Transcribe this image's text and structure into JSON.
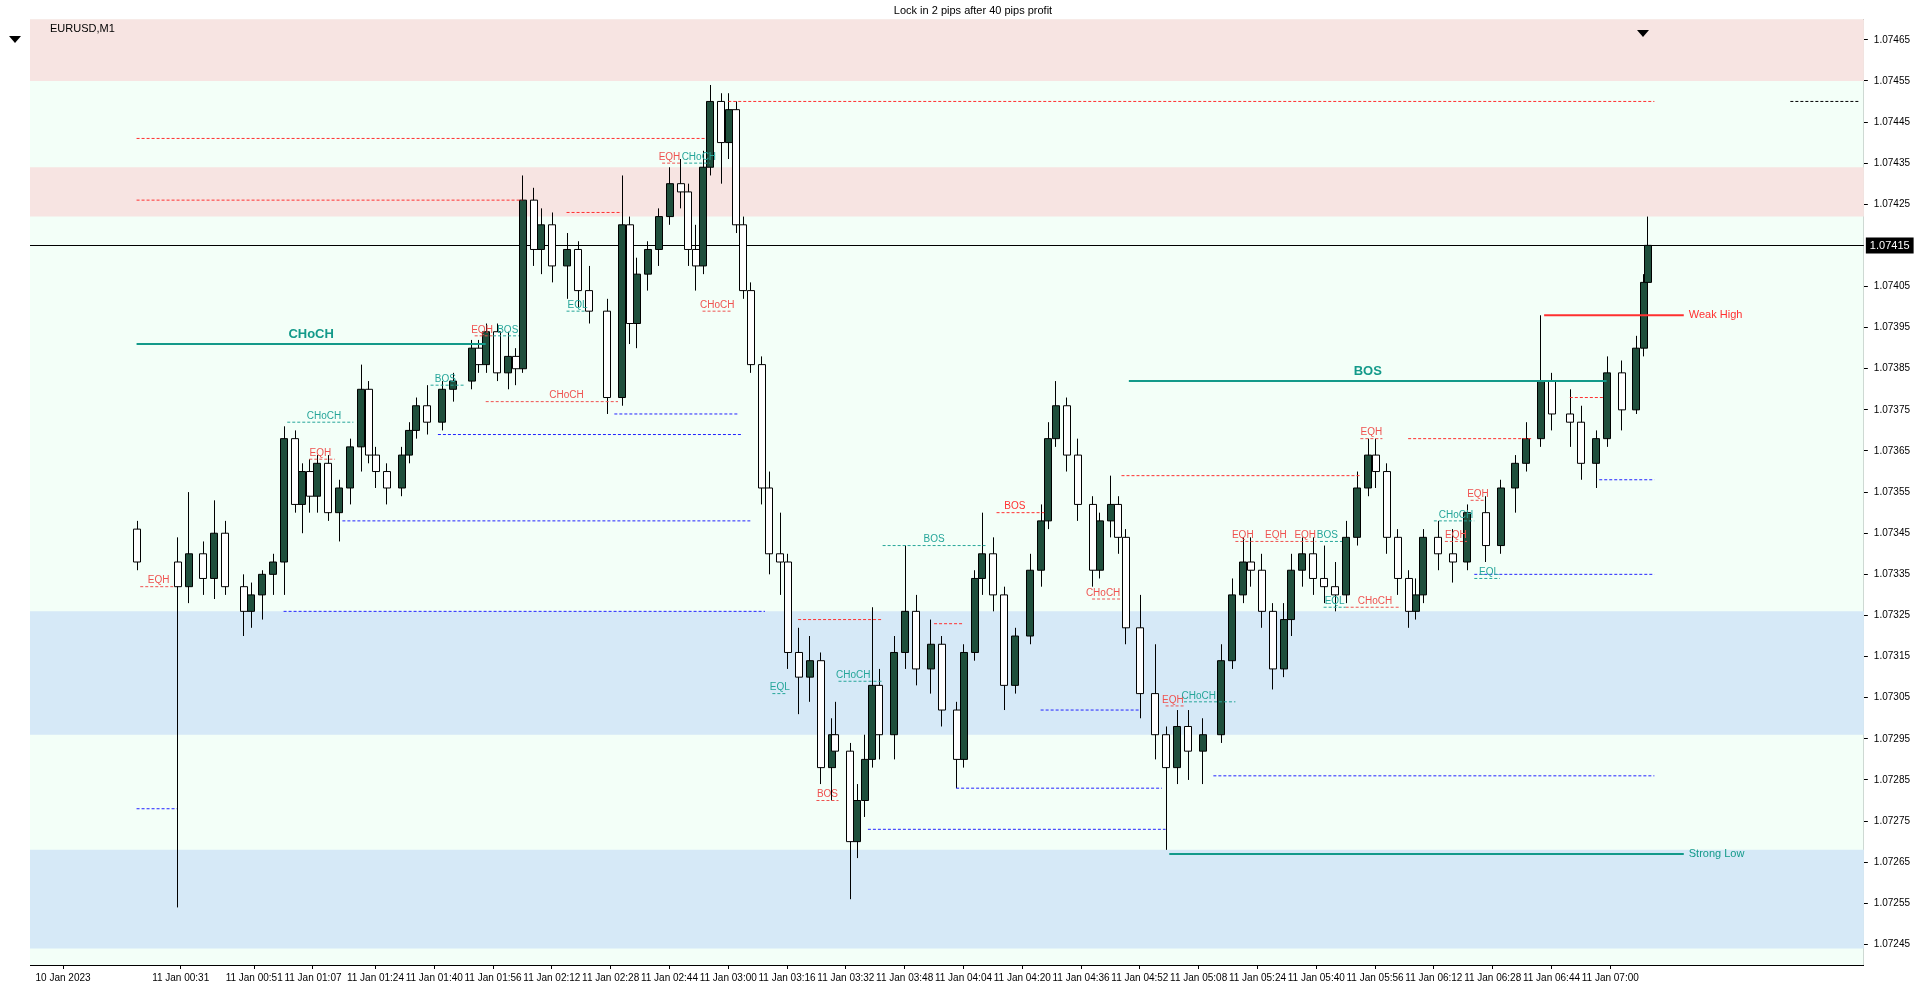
{
  "chart_data": {
    "type": "candlestick",
    "title": "Lock in 2 pips after 40 pips profit",
    "subtitle": "EURUSD,M1",
    "x": [
      "2023-01-11T00:19",
      "2023-01-11T00:30",
      "2023-01-11T00:33",
      "2023-01-11T00:37",
      "2023-01-11T00:40",
      "2023-01-11T00:43",
      "2023-01-11T00:48",
      "2023-01-11T00:50",
      "2023-01-11T00:53",
      "2023-01-11T00:56",
      "2023-01-11T00:59",
      "2023-01-11T01:02",
      "2023-01-11T01:04",
      "2023-01-11T01:06",
      "2023-01-11T01:08",
      "2023-01-11T01:11",
      "2023-01-11T01:14",
      "2023-01-11T01:17",
      "2023-01-11T01:20",
      "2023-01-11T01:22",
      "2023-01-11T01:24",
      "2023-01-11T01:27",
      "2023-01-11T01:31",
      "2023-01-11T01:33",
      "2023-01-11T01:35",
      "2023-01-11T01:38",
      "2023-01-11T01:42",
      "2023-01-11T01:45",
      "2023-01-11T01:50",
      "2023-01-11T01:52",
      "2023-01-11T01:54",
      "2023-01-11T01:57",
      "2023-01-11T02:00",
      "2023-01-11T02:02",
      "2023-01-11T02:04",
      "2023-01-11T02:07",
      "2023-01-11T02:09",
      "2023-01-11T02:12",
      "2023-01-11T02:16",
      "2023-01-11T02:19",
      "2023-01-11T02:22",
      "2023-01-11T02:27",
      "2023-01-11T02:31",
      "2023-01-11T02:33",
      "2023-01-11T02:35",
      "2023-01-11T02:38",
      "2023-01-11T02:41",
      "2023-01-11T02:44",
      "2023-01-11T02:47",
      "2023-01-11T02:49",
      "2023-01-11T02:51",
      "2023-01-11T02:53",
      "2023-01-11T02:55",
      "2023-01-11T02:58",
      "2023-01-11T03:00",
      "2023-01-11T03:02",
      "2023-01-11T03:04",
      "2023-01-11T03:06",
      "2023-01-11T03:09",
      "2023-01-11T03:11",
      "2023-01-11T03:14",
      "2023-01-11T03:16",
      "2023-01-11T03:19",
      "2023-01-11T03:22",
      "2023-01-11T03:25",
      "2023-01-11T03:28",
      "2023-01-11T03:29",
      "2023-01-11T03:33",
      "2023-01-11T03:35",
      "2023-01-11T03:37",
      "2023-01-11T03:39",
      "2023-01-11T03:41",
      "2023-01-11T03:45",
      "2023-01-11T03:48",
      "2023-01-11T03:51",
      "2023-01-11T03:55",
      "2023-01-11T03:58",
      "2023-01-11T04:02",
      "2023-01-11T04:04",
      "2023-01-11T04:07",
      "2023-01-11T04:09",
      "2023-01-11T04:12",
      "2023-01-11T04:15",
      "2023-01-11T04:18",
      "2023-01-11T04:22",
      "2023-01-11T04:25",
      "2023-01-11T04:27",
      "2023-01-11T04:29",
      "2023-01-11T04:32",
      "2023-01-11T04:35",
      "2023-01-11T04:39",
      "2023-01-11T04:41",
      "2023-01-11T04:44",
      "2023-01-11T04:46",
      "2023-01-11T04:48",
      "2023-01-11T04:52",
      "2023-01-11T04:56",
      "2023-01-11T04:59",
      "2023-01-11T05:02",
      "2023-01-11T05:05",
      "2023-01-11T05:09",
      "2023-01-11T05:14",
      "2023-01-11T05:17",
      "2023-01-11T05:20",
      "2023-01-11T05:22",
      "2023-01-11T05:25",
      "2023-01-11T05:28",
      "2023-01-11T05:31",
      "2023-01-11T05:33",
      "2023-01-11T05:36",
      "2023-01-11T05:39",
      "2023-01-11T05:42",
      "2023-01-11T05:45",
      "2023-01-11T05:48",
      "2023-01-11T05:51",
      "2023-01-11T05:54",
      "2023-01-11T05:56",
      "2023-01-11T05:59",
      "2023-01-11T06:02",
      "2023-01-11T06:05",
      "2023-01-11T06:07",
      "2023-01-11T06:09",
      "2023-01-11T06:13",
      "2023-01-11T06:17",
      "2023-01-11T06:21",
      "2023-01-11T06:26",
      "2023-01-11T06:30",
      "2023-01-11T06:34",
      "2023-01-11T06:37",
      "2023-01-11T06:41",
      "2023-01-11T06:44",
      "2023-01-11T06:49",
      "2023-01-11T06:52",
      "2023-01-11T06:56",
      "2023-01-11T06:59",
      "2023-01-11T07:03",
      "2023-01-11T07:07",
      "2023-01-11T07:09",
      "2023-01-11T07:10"
    ],
    "ohlc": [
      [
        1.07346,
        1.07348,
        1.07336,
        1.07338
      ],
      [
        1.07338,
        1.07344,
        1.07254,
        1.07332
      ],
      [
        1.07332,
        1.07355,
        1.07328,
        1.0734
      ],
      [
        1.0734,
        1.07343,
        1.0733,
        1.07334
      ],
      [
        1.07334,
        1.07353,
        1.07329,
        1.07345
      ],
      [
        1.07345,
        1.07348,
        1.0733,
        1.07332
      ],
      [
        1.07332,
        1.07335,
        1.0732,
        1.07326
      ],
      [
        1.07326,
        1.07333,
        1.07322,
        1.0733
      ],
      [
        1.0733,
        1.07336,
        1.07324,
        1.07335
      ],
      [
        1.07335,
        1.0734,
        1.0733,
        1.07338
      ],
      [
        1.07338,
        1.07371,
        1.0733,
        1.07368
      ],
      [
        1.07368,
        1.0737,
        1.0735,
        1.07352
      ],
      [
        1.07352,
        1.07362,
        1.07345,
        1.0736
      ],
      [
        1.0736,
        1.07363,
        1.0735,
        1.07354
      ],
      [
        1.07354,
        1.07364,
        1.0735,
        1.07362
      ],
      [
        1.07362,
        1.07364,
        1.07348,
        1.0735
      ],
      [
        1.0735,
        1.07358,
        1.07343,
        1.07356
      ],
      [
        1.07356,
        1.07368,
        1.07352,
        1.07366
      ],
      [
        1.07366,
        1.07386,
        1.0736,
        1.0738
      ],
      [
        1.0738,
        1.07382,
        1.07362,
        1.07364
      ],
      [
        1.07364,
        1.07366,
        1.07356,
        1.0736
      ],
      [
        1.0736,
        1.07362,
        1.07352,
        1.07356
      ],
      [
        1.07356,
        1.07366,
        1.07354,
        1.07364
      ],
      [
        1.07364,
        1.07372,
        1.07362,
        1.0737
      ],
      [
        1.0737,
        1.07378,
        1.07368,
        1.07376
      ],
      [
        1.07376,
        1.07381,
        1.07369,
        1.07372
      ],
      [
        1.07372,
        1.07382,
        1.0737,
        1.0738
      ],
      [
        1.0738,
        1.07384,
        1.07377,
        1.07382
      ],
      [
        1.07382,
        1.07392,
        1.0738,
        1.0739
      ],
      [
        1.0739,
        1.07392,
        1.07384,
        1.07386
      ],
      [
        1.07386,
        1.07396,
        1.07384,
        1.07394
      ],
      [
        1.07394,
        1.07396,
        1.07382,
        1.07384
      ],
      [
        1.07384,
        1.07394,
        1.0738,
        1.07388
      ],
      [
        1.07388,
        1.0739,
        1.07381,
        1.07385
      ],
      [
        1.07385,
        1.07432,
        1.07384,
        1.07426
      ],
      [
        1.07426,
        1.07429,
        1.0741,
        1.07414
      ],
      [
        1.07414,
        1.07424,
        1.07408,
        1.0742
      ],
      [
        1.0742,
        1.07423,
        1.07406,
        1.0741
      ],
      [
        1.0741,
        1.07418,
        1.07402,
        1.07414
      ],
      [
        1.07414,
        1.07416,
        1.074,
        1.07404
      ],
      [
        1.07404,
        1.0741,
        1.07396,
        1.07399
      ],
      [
        1.07399,
        1.07402,
        1.07374,
        1.07378
      ],
      [
        1.07378,
        1.07432,
        1.07376,
        1.0742
      ],
      [
        1.0742,
        1.07422,
        1.07391,
        1.07396
      ],
      [
        1.07396,
        1.07412,
        1.0739,
        1.07408
      ],
      [
        1.07408,
        1.07416,
        1.07404,
        1.07414
      ],
      [
        1.07414,
        1.07424,
        1.0741,
        1.07422
      ],
      [
        1.07422,
        1.07434,
        1.0742,
        1.0743
      ],
      [
        1.0743,
        1.07436,
        1.07424,
        1.07428
      ],
      [
        1.07428,
        1.0743,
        1.0741,
        1.07414
      ],
      [
        1.07414,
        1.0742,
        1.07404,
        1.0741
      ],
      [
        1.0741,
        1.07438,
        1.07408,
        1.07434
      ],
      [
        1.07434,
        1.07454,
        1.07432,
        1.0745
      ],
      [
        1.0745,
        1.07452,
        1.0743,
        1.0744
      ],
      [
        1.0744,
        1.07452,
        1.07436,
        1.07448
      ],
      [
        1.07448,
        1.0745,
        1.07418,
        1.0742
      ],
      [
        1.0742,
        1.07422,
        1.07402,
        1.07404
      ],
      [
        1.07404,
        1.07406,
        1.07384,
        1.07386
      ],
      [
        1.07386,
        1.07388,
        1.07352,
        1.07356
      ],
      [
        1.07356,
        1.0736,
        1.07335,
        1.0734
      ],
      [
        1.0734,
        1.0735,
        1.0733,
        1.07338
      ],
      [
        1.07338,
        1.0734,
        1.07312,
        1.07316
      ],
      [
        1.07316,
        1.07322,
        1.07301,
        1.0731
      ],
      [
        1.0731,
        1.0732,
        1.07304,
        1.07314
      ],
      [
        1.07314,
        1.07316,
        1.07284,
        1.07288
      ],
      [
        1.07288,
        1.073,
        1.0728,
        1.07296
      ],
      [
        1.07296,
        1.07304,
        1.07288,
        1.07292
      ],
      [
        1.07292,
        1.07294,
        1.07256,
        1.0727
      ],
      [
        1.0727,
        1.07284,
        1.07266,
        1.0728
      ],
      [
        1.0728,
        1.07296,
        1.07276,
        1.0729
      ],
      [
        1.0729,
        1.07327,
        1.07288,
        1.07308
      ],
      [
        1.07308,
        1.07312,
        1.0729,
        1.07296
      ],
      [
        1.07296,
        1.0732,
        1.0729,
        1.07316
      ],
      [
        1.07316,
        1.07342,
        1.07312,
        1.07326
      ],
      [
        1.07326,
        1.0733,
        1.07308,
        1.07312
      ],
      [
        1.07312,
        1.07324,
        1.07306,
        1.07318
      ],
      [
        1.07318,
        1.0732,
        1.07298,
        1.07302
      ],
      [
        1.07302,
        1.07304,
        1.07283,
        1.0729
      ],
      [
        1.0729,
        1.07318,
        1.07288,
        1.07316
      ],
      [
        1.07316,
        1.07336,
        1.07314,
        1.07334
      ],
      [
        1.07334,
        1.0735,
        1.0733,
        1.0734
      ],
      [
        1.0734,
        1.07344,
        1.07326,
        1.0733
      ],
      [
        1.0733,
        1.07332,
        1.07302,
        1.07308
      ],
      [
        1.07308,
        1.07322,
        1.07306,
        1.0732
      ],
      [
        1.0732,
        1.0734,
        1.07318,
        1.07336
      ],
      [
        1.07336,
        1.07352,
        1.07332,
        1.07348
      ],
      [
        1.07348,
        1.07372,
        1.07346,
        1.07368
      ],
      [
        1.07368,
        1.07382,
        1.07366,
        1.07376
      ],
      [
        1.07376,
        1.07378,
        1.0736,
        1.07364
      ],
      [
        1.07364,
        1.07368,
        1.07348,
        1.07352
      ],
      [
        1.07352,
        1.07354,
        1.07332,
        1.07336
      ],
      [
        1.07336,
        1.0735,
        1.07334,
        1.07348
      ],
      [
        1.07348,
        1.07359,
        1.07344,
        1.07352
      ],
      [
        1.07352,
        1.07354,
        1.0734,
        1.07344
      ],
      [
        1.07344,
        1.07346,
        1.07318,
        1.07322
      ],
      [
        1.07322,
        1.0733,
        1.073,
        1.07306
      ],
      [
        1.07306,
        1.07318,
        1.0729,
        1.07296
      ],
      [
        1.07296,
        1.07298,
        1.07268,
        1.07288
      ],
      [
        1.07288,
        1.07302,
        1.07284,
        1.07298
      ],
      [
        1.07298,
        1.07302,
        1.07285,
        1.07292
      ],
      [
        1.07292,
        1.073,
        1.07284,
        1.07296
      ],
      [
        1.07296,
        1.07318,
        1.07294,
        1.07314
      ],
      [
        1.07314,
        1.07334,
        1.07312,
        1.0733
      ],
      [
        1.0733,
        1.07344,
        1.07328,
        1.07338
      ],
      [
        1.07338,
        1.07344,
        1.07332,
        1.07336
      ],
      [
        1.07336,
        1.0734,
        1.07322,
        1.07326
      ],
      [
        1.07326,
        1.07328,
        1.07307,
        1.07312
      ],
      [
        1.07312,
        1.07328,
        1.0731,
        1.07324
      ],
      [
        1.07324,
        1.0734,
        1.0732,
        1.07336
      ],
      [
        1.07336,
        1.07344,
        1.07332,
        1.0734
      ],
      [
        1.0734,
        1.07344,
        1.0733,
        1.07334
      ],
      [
        1.07334,
        1.07342,
        1.07328,
        1.07332
      ],
      [
        1.07332,
        1.07338,
        1.07326,
        1.0733
      ],
      [
        1.0733,
        1.07348,
        1.07328,
        1.07344
      ],
      [
        1.07344,
        1.0736,
        1.07342,
        1.07356
      ],
      [
        1.07356,
        1.07368,
        1.07354,
        1.07364
      ],
      [
        1.07364,
        1.07368,
        1.07356,
        1.0736
      ],
      [
        1.0736,
        1.07362,
        1.0734,
        1.07344
      ],
      [
        1.07344,
        1.07346,
        1.0733,
        1.07334
      ],
      [
        1.07334,
        1.07336,
        1.07322,
        1.07326
      ],
      [
        1.07326,
        1.07334,
        1.07324,
        1.0733
      ],
      [
        1.0733,
        1.07346,
        1.07328,
        1.07344
      ],
      [
        1.07344,
        1.07348,
        1.07336,
        1.0734
      ],
      [
        1.0734,
        1.07346,
        1.07333,
        1.07338
      ],
      [
        1.07338,
        1.07352,
        1.07336,
        1.0735
      ],
      [
        1.0735,
        1.07354,
        1.07338,
        1.07342
      ],
      [
        1.07342,
        1.07358,
        1.0734,
        1.07356
      ],
      [
        1.07356,
        1.07364,
        1.0735,
        1.07362
      ],
      [
        1.07362,
        1.07372,
        1.0736,
        1.07368
      ],
      [
        1.07368,
        1.07398,
        1.07366,
        1.07382
      ],
      [
        1.07382,
        1.07384,
        1.0737,
        1.07374
      ],
      [
        1.07374,
        1.0738,
        1.07366,
        1.07372
      ],
      [
        1.07372,
        1.07376,
        1.07358,
        1.07362
      ],
      [
        1.07362,
        1.0737,
        1.07356,
        1.07368
      ],
      [
        1.07368,
        1.07388,
        1.07366,
        1.07384
      ],
      [
        1.07384,
        1.07387,
        1.0737,
        1.07375
      ],
      [
        1.07375,
        1.07393,
        1.07374,
        1.0739
      ],
      [
        1.0739,
        1.07408,
        1.07388,
        1.07406
      ],
      [
        1.07406,
        1.07422,
        1.07404,
        1.07415
      ]
    ],
    "xlim": [
      "2023-01-10T23:50",
      "2023-01-11T08:09"
    ],
    "xticks": [
      {
        "value": "2023-01-10T23:59",
        "label": "10 Jan 2023"
      },
      {
        "value": "2023-01-11T00:31",
        "label": "11 Jan 00:31"
      },
      {
        "value": "2023-01-11T00:51",
        "label": "11 Jan 00:51"
      },
      {
        "value": "2023-01-11T01:07",
        "label": "11 Jan 01:07"
      },
      {
        "value": "2023-01-11T01:24",
        "label": "11 Jan 01:24"
      },
      {
        "value": "2023-01-11T01:40",
        "label": "11 Jan 01:40"
      },
      {
        "value": "2023-01-11T01:56",
        "label": "11 Jan 01:56"
      },
      {
        "value": "2023-01-11T02:12",
        "label": "11 Jan 02:12"
      },
      {
        "value": "2023-01-11T02:28",
        "label": "11 Jan 02:28"
      },
      {
        "value": "2023-01-11T02:44",
        "label": "11 Jan 02:44"
      },
      {
        "value": "2023-01-11T03:00",
        "label": "11 Jan 03:00"
      },
      {
        "value": "2023-01-11T03:16",
        "label": "11 Jan 03:16"
      },
      {
        "value": "2023-01-11T03:32",
        "label": "11 Jan 03:32"
      },
      {
        "value": "2023-01-11T03:48",
        "label": "11 Jan 03:48"
      },
      {
        "value": "2023-01-11T04:04",
        "label": "11 Jan 04:04"
      },
      {
        "value": "2023-01-11T04:20",
        "label": "11 Jan 04:20"
      },
      {
        "value": "2023-01-11T04:36",
        "label": "11 Jan 04:36"
      },
      {
        "value": "2023-01-11T04:52",
        "label": "11 Jan 04:52"
      },
      {
        "value": "2023-01-11T05:08",
        "label": "11 Jan 05:08"
      },
      {
        "value": "2023-01-11T05:24",
        "label": "11 Jan 05:24"
      },
      {
        "value": "2023-01-11T05:40",
        "label": "11 Jan 05:40"
      },
      {
        "value": "2023-01-11T05:56",
        "label": "11 Jan 05:56"
      },
      {
        "value": "2023-01-11T06:12",
        "label": "11 Jan 06:12"
      },
      {
        "value": "2023-01-11T06:28",
        "label": "11 Jan 06:28"
      },
      {
        "value": "2023-01-11T06:44",
        "label": "11 Jan 06:44"
      },
      {
        "value": "2023-01-11T07:00",
        "label": "11 Jan 07:00"
      }
    ],
    "ylim": [
      1.0724,
      1.0747
    ],
    "yticks": [
      1.07245,
      1.07255,
      1.07265,
      1.07275,
      1.07285,
      1.07295,
      1.07305,
      1.07315,
      1.07325,
      1.07335,
      1.07345,
      1.07355,
      1.07365,
      1.07375,
      1.07385,
      1.07395,
      1.07405,
      1.07425,
      1.07435,
      1.07445,
      1.07455,
      1.07465
    ],
    "grid": false,
    "legend": false,
    "bands": [
      {
        "axis": "y",
        "from": 1.07455,
        "to": 1.0747,
        "color": "#f7e4e2"
      },
      {
        "axis": "y",
        "from": 1.07422,
        "to": 1.07434,
        "color": "#f7e4e2"
      },
      {
        "axis": "y",
        "from": 1.07296,
        "to": 1.07326,
        "color": "#d6e9f7"
      },
      {
        "axis": "y",
        "from": 1.07244,
        "to": 1.07268,
        "color": "#d6e9f7"
      }
    ],
    "ref_lines": [
      {
        "axis": "y",
        "value": 1.07415,
        "label": "1.07415",
        "color": "#000000",
        "line_style": "solid"
      }
    ],
    "series": [
      {
        "type": "line",
        "name": "CHoCH",
        "color": "#139a8a",
        "line_style": "solid",
        "x": [
          "2023-01-11T00:19",
          "2023-01-11T01:54"
        ],
        "values": [
          1.07391,
          1.07391
        ]
      },
      {
        "type": "line",
        "name": "BOS",
        "color": "#139a8a",
        "line_style": "solid",
        "x": [
          "2023-01-11T04:49",
          "2023-01-11T06:59"
        ],
        "values": [
          1.07382,
          1.07382
        ]
      },
      {
        "type": "line",
        "name": "Weak High",
        "color": "#ff3030",
        "line_style": "solid",
        "x": [
          "2023-01-11T06:42",
          "2023-01-11T07:20"
        ],
        "values": [
          1.07398,
          1.07398
        ]
      },
      {
        "type": "line",
        "name": "Strong Low",
        "color": "#139a8a",
        "line_style": "solid",
        "x": [
          "2023-01-11T05:00",
          "2023-01-11T07:20"
        ],
        "values": [
          1.07267,
          1.07267
        ]
      },
      {
        "type": "line",
        "color": "#ff3030",
        "line_style": "dashed",
        "x": [
          "2023-01-11T03:00",
          "2023-01-11T07:12"
        ],
        "values": [
          1.0745,
          1.0745
        ]
      },
      {
        "type": "line",
        "color": "#ff3030",
        "line_style": "dashed",
        "x": [
          "2023-01-11T00:19",
          "2023-01-11T02:54"
        ],
        "values": [
          1.07441,
          1.07441
        ]
      },
      {
        "type": "line",
        "color": "#ff3030",
        "line_style": "dashed",
        "x": [
          "2023-01-11T00:19",
          "2023-01-11T02:04"
        ],
        "values": [
          1.07426,
          1.07426
        ]
      },
      {
        "type": "line",
        "color": "#ff3030",
        "line_style": "dashed",
        "x": [
          "2023-01-11T02:16",
          "2023-01-11T02:31"
        ],
        "values": [
          1.07423,
          1.07423
        ]
      },
      {
        "type": "line",
        "color": "#ff3030",
        "line_style": "dashed",
        "x": [
          "2023-01-11T04:47",
          "2023-01-11T05:52"
        ],
        "values": [
          1.07359,
          1.07359
        ]
      },
      {
        "type": "line",
        "color": "#ff3030",
        "line_style": "dashed",
        "x": [
          "2023-01-11T06:05",
          "2023-01-11T06:39"
        ],
        "values": [
          1.07368,
          1.07368
        ]
      },
      {
        "type": "line",
        "color": "#ff3030",
        "line_style": "dashed",
        "x": [
          "2023-01-11T06:49",
          "2023-01-11T06:58"
        ],
        "values": [
          1.07378,
          1.07378
        ]
      },
      {
        "type": "line",
        "color": "#ff3030",
        "line_style": "dashed",
        "x": [
          "2023-01-11T04:13",
          "2023-01-11T04:26"
        ],
        "values": [
          1.0735,
          1.0735
        ]
      },
      {
        "type": "line",
        "color": "#ff3030",
        "line_style": "dashed",
        "x": [
          "2023-01-11T03:19",
          "2023-01-11T03:42"
        ],
        "values": [
          1.07324,
          1.07324
        ]
      },
      {
        "type": "line",
        "color": "#ff3030",
        "line_style": "dashed",
        "x": [
          "2023-01-11T03:56",
          "2023-01-11T04:04"
        ],
        "values": [
          1.07323,
          1.07323
        ]
      },
      {
        "type": "line",
        "color": "#000000",
        "line_style": "dashed",
        "x": [
          "2023-01-11T07:49",
          "2023-01-11T08:08"
        ],
        "values": [
          1.0745,
          1.0745
        ]
      },
      {
        "type": "line",
        "color": "#2323ff",
        "line_style": "dashed",
        "x": [
          "2023-01-11T00:59",
          "2023-01-11T03:10"
        ],
        "values": [
          1.07326,
          1.07326
        ]
      },
      {
        "type": "line",
        "color": "#2323ff",
        "line_style": "dashed",
        "x": [
          "2023-01-11T01:15",
          "2023-01-11T03:06"
        ],
        "values": [
          1.07348,
          1.07348
        ]
      },
      {
        "type": "line",
        "color": "#2323ff",
        "line_style": "dashed",
        "x": [
          "2023-01-11T01:41",
          "2023-01-11T03:04"
        ],
        "values": [
          1.07369,
          1.07369
        ]
      },
      {
        "type": "line",
        "color": "#2323ff",
        "line_style": "dashed",
        "x": [
          "2023-01-11T02:29",
          "2023-01-11T03:03"
        ],
        "values": [
          1.07374,
          1.07374
        ]
      },
      {
        "type": "line",
        "color": "#2323ff",
        "line_style": "dashed",
        "x": [
          "2023-01-11T00:19",
          "2023-01-11T00:30"
        ],
        "values": [
          1.07278,
          1.07278
        ]
      },
      {
        "type": "line",
        "color": "#2323ff",
        "line_style": "dashed",
        "x": [
          "2023-01-11T03:38",
          "2023-01-11T04:59"
        ],
        "values": [
          1.07273,
          1.07273
        ]
      },
      {
        "type": "line",
        "color": "#2323ff",
        "line_style": "dashed",
        "x": [
          "2023-01-11T04:02",
          "2023-01-11T04:58"
        ],
        "values": [
          1.07283,
          1.07283
        ]
      },
      {
        "type": "line",
        "color": "#2323ff",
        "line_style": "dashed",
        "x": [
          "2023-01-11T04:25",
          "2023-01-11T04:52"
        ],
        "values": [
          1.07302,
          1.07302
        ]
      },
      {
        "type": "line",
        "color": "#2323ff",
        "line_style": "dashed",
        "x": [
          "2023-01-11T05:12",
          "2023-01-11T07:12"
        ],
        "values": [
          1.07286,
          1.07286
        ]
      },
      {
        "type": "line",
        "color": "#2323ff",
        "line_style": "dashed",
        "x": [
          "2023-01-11T06:23",
          "2023-01-11T07:12"
        ],
        "values": [
          1.07335,
          1.07335
        ]
      },
      {
        "type": "line",
        "color": "#2323ff",
        "line_style": "dashed",
        "x": [
          "2023-01-11T06:57",
          "2023-01-11T07:12"
        ],
        "values": [
          1.07358,
          1.07358
        ]
      },
      {
        "type": "line",
        "color": "#ef5350",
        "line_style": "dashed",
        "x": [
          "2023-01-11T00:20",
          "2023-01-11T00:29"
        ],
        "values": [
          1.07332,
          1.07332
        ]
      },
      {
        "type": "line",
        "color": "#26a69a",
        "line_style": "dashed",
        "x": [
          "2023-01-11T01:00",
          "2023-01-11T01:18"
        ],
        "values": [
          1.07372,
          1.07372
        ]
      },
      {
        "type": "line",
        "color": "#ef5350",
        "line_style": "dashed",
        "x": [
          "2023-01-11T01:06",
          "2023-01-11T01:13"
        ],
        "values": [
          1.07363,
          1.07363
        ]
      },
      {
        "type": "line",
        "color": "#26a69a",
        "line_style": "dashed",
        "x": [
          "2023-01-11T01:39",
          "2023-01-11T01:48"
        ],
        "values": [
          1.07381,
          1.07381
        ]
      },
      {
        "type": "line",
        "color": "#ef5350",
        "line_style": "dashed",
        "x": [
          "2023-01-11T01:51",
          "2023-01-11T01:56"
        ],
        "values": [
          1.07393,
          1.07393
        ]
      },
      {
        "type": "line",
        "color": "#26a69a",
        "line_style": "dashed",
        "x": [
          "2023-01-11T01:56",
          "2023-01-11T02:03"
        ],
        "values": [
          1.07393,
          1.07393
        ]
      },
      {
        "type": "line",
        "color": "#ef5350",
        "line_style": "dashed",
        "x": [
          "2023-01-11T01:54",
          "2023-01-11T02:30"
        ],
        "values": [
          1.07377,
          1.07377
        ]
      },
      {
        "type": "line",
        "color": "#26a69a",
        "line_style": "dashed",
        "x": [
          "2023-01-11T02:16",
          "2023-01-11T02:21"
        ],
        "values": [
          1.07399,
          1.07399
        ]
      },
      {
        "type": "line",
        "color": "#ef5350",
        "line_style": "dashed",
        "x": [
          "2023-01-11T02:42",
          "2023-01-11T02:47"
        ],
        "values": [
          1.07435,
          1.07435
        ]
      },
      {
        "type": "line",
        "color": "#26a69a",
        "line_style": "dashed",
        "x": [
          "2023-01-11T02:48",
          "2023-01-11T02:55"
        ],
        "values": [
          1.07435,
          1.07435
        ]
      },
      {
        "type": "line",
        "color": "#ef5350",
        "line_style": "dashed",
        "x": [
          "2023-01-11T02:53",
          "2023-01-11T03:01"
        ],
        "values": [
          1.07399,
          1.07399
        ]
      },
      {
        "type": "line",
        "color": "#26a69a",
        "line_style": "dashed",
        "x": [
          "2023-01-11T03:12",
          "2023-01-11T03:16"
        ],
        "values": [
          1.07306,
          1.07306
        ]
      },
      {
        "type": "line",
        "color": "#26a69a",
        "line_style": "dashed",
        "x": [
          "2023-01-11T03:30",
          "2023-01-11T03:42"
        ],
        "values": [
          1.07309,
          1.07309
        ]
      },
      {
        "type": "line",
        "color": "#ef5350",
        "line_style": "dashed",
        "x": [
          "2023-01-11T03:24",
          "2023-01-11T03:30"
        ],
        "values": [
          1.0728,
          1.0728
        ]
      },
      {
        "type": "line",
        "color": "#26a69a",
        "line_style": "dashed",
        "x": [
          "2023-01-11T03:42",
          "2023-01-11T04:10"
        ],
        "values": [
          1.07342,
          1.07342
        ]
      },
      {
        "type": "line",
        "color": "#ef5350",
        "line_style": "dashed",
        "x": [
          "2023-01-11T04:39",
          "2023-01-11T04:47"
        ],
        "values": [
          1.07329,
          1.07329
        ]
      },
      {
        "type": "line",
        "color": "#ef5350",
        "line_style": "dashed",
        "x": [
          "2023-01-11T04:59",
          "2023-01-11T05:04"
        ],
        "values": [
          1.07303,
          1.07303
        ]
      },
      {
        "type": "line",
        "color": "#26a69a",
        "line_style": "dashed",
        "x": [
          "2023-01-11T05:04",
          "2023-01-11T05:18"
        ],
        "values": [
          1.07304,
          1.07304
        ]
      },
      {
        "type": "line",
        "color": "#ef5350",
        "line_style": "dashed",
        "x": [
          "2023-01-11T05:18",
          "2023-01-11T05:40"
        ],
        "values": [
          1.07343,
          1.07343
        ]
      },
      {
        "type": "line",
        "color": "#26a69a",
        "line_style": "dashed",
        "x": [
          "2023-01-11T05:41",
          "2023-01-11T05:47"
        ],
        "values": [
          1.07343,
          1.07343
        ]
      },
      {
        "type": "line",
        "color": "#26a69a",
        "line_style": "dashed",
        "x": [
          "2023-01-11T05:42",
          "2023-01-11T05:48"
        ],
        "values": [
          1.07327,
          1.07327
        ]
      },
      {
        "type": "line",
        "color": "#ef5350",
        "line_style": "dashed",
        "x": [
          "2023-01-11T05:48",
          "2023-01-11T06:03"
        ],
        "values": [
          1.07327,
          1.07327
        ]
      },
      {
        "type": "line",
        "color": "#ef5350",
        "line_style": "dashed",
        "x": [
          "2023-01-11T05:52",
          "2023-01-11T05:58"
        ],
        "values": [
          1.07368,
          1.07368
        ]
      },
      {
        "type": "line",
        "color": "#26a69a",
        "line_style": "dashed",
        "x": [
          "2023-01-11T06:12",
          "2023-01-11T06:23"
        ],
        "values": [
          1.07348,
          1.07348
        ]
      },
      {
        "type": "line",
        "color": "#ef5350",
        "line_style": "dashed",
        "x": [
          "2023-01-11T06:15",
          "2023-01-11T06:21"
        ],
        "values": [
          1.07343,
          1.07343
        ]
      },
      {
        "type": "line",
        "color": "#ef5350",
        "line_style": "dashed",
        "x": [
          "2023-01-11T06:22",
          "2023-01-11T06:26"
        ],
        "values": [
          1.07353,
          1.07353
        ]
      },
      {
        "type": "line",
        "color": "#26a69a",
        "line_style": "dashed",
        "x": [
          "2023-01-11T06:23",
          "2023-01-11T06:30"
        ],
        "values": [
          1.07334,
          1.07334
        ]
      }
    ],
    "annotations": [
      {
        "text": "EQH",
        "x": "2023-01-11T00:25",
        "y": 1.07332
      },
      {
        "text": "CHoCH",
        "x": "2023-01-11T01:10",
        "y": 1.07372
      },
      {
        "text": "EQH",
        "x": "2023-01-11T01:09",
        "y": 1.07363
      },
      {
        "text": "BOS",
        "x": "2023-01-11T01:43",
        "y": 1.07381
      },
      {
        "text": "EQH",
        "x": "2023-01-11T01:53",
        "y": 1.07393
      },
      {
        "text": "BOS",
        "x": "2023-01-11T02:00",
        "y": 1.07393
      },
      {
        "text": "CHoCH",
        "x": "2023-01-11T02:16",
        "y": 1.07377
      },
      {
        "text": "EQL",
        "x": "2023-01-11T02:19",
        "y": 1.07399
      },
      {
        "text": "EQH",
        "x": "2023-01-11T02:44",
        "y": 1.07435
      },
      {
        "text": "CHoCH",
        "x": "2023-01-11T02:52",
        "y": 1.07435
      },
      {
        "text": "CHoCH",
        "x": "2023-01-11T02:57",
        "y": 1.07399
      },
      {
        "text": "EQL",
        "x": "2023-01-11T03:14",
        "y": 1.07306
      },
      {
        "text": "CHoCH",
        "x": "2023-01-11T03:34",
        "y": 1.07309
      },
      {
        "text": "BOS",
        "x": "2023-01-11T03:27",
        "y": 1.0728
      },
      {
        "text": "BOS",
        "x": "2023-01-11T03:56",
        "y": 1.07342
      },
      {
        "text": "BOS",
        "x": "2023-01-11T04:18",
        "y": 1.0735
      },
      {
        "text": "CHoCH",
        "x": "2023-01-11T04:42",
        "y": 1.07329
      },
      {
        "text": "EQH",
        "x": "2023-01-11T05:01",
        "y": 1.07303
      },
      {
        "text": "CHoCH",
        "x": "2023-01-11T05:08",
        "y": 1.07304
      },
      {
        "text": "EQH",
        "x": "2023-01-11T05:20",
        "y": 1.07343
      },
      {
        "text": "EQH",
        "x": "2023-01-11T05:29",
        "y": 1.07343
      },
      {
        "text": "EQH",
        "x": "2023-01-11T05:37",
        "y": 1.07343
      },
      {
        "text": "BOS",
        "x": "2023-01-11T05:43",
        "y": 1.07343
      },
      {
        "text": "EQL",
        "x": "2023-01-11T05:45",
        "y": 1.07327
      },
      {
        "text": "CHoCH",
        "x": "2023-01-11T05:56",
        "y": 1.07327
      },
      {
        "text": "EQH",
        "x": "2023-01-11T05:55",
        "y": 1.07368
      },
      {
        "text": "CHoCH",
        "x": "2023-01-11T06:18",
        "y": 1.07348
      },
      {
        "text": "EQH",
        "x": "2023-01-11T06:18",
        "y": 1.07343
      },
      {
        "text": "EQH",
        "x": "2023-01-11T06:24",
        "y": 1.07353
      },
      {
        "text": "EQL",
        "x": "2023-01-11T06:27",
        "y": 1.07334
      }
    ]
  }
}
